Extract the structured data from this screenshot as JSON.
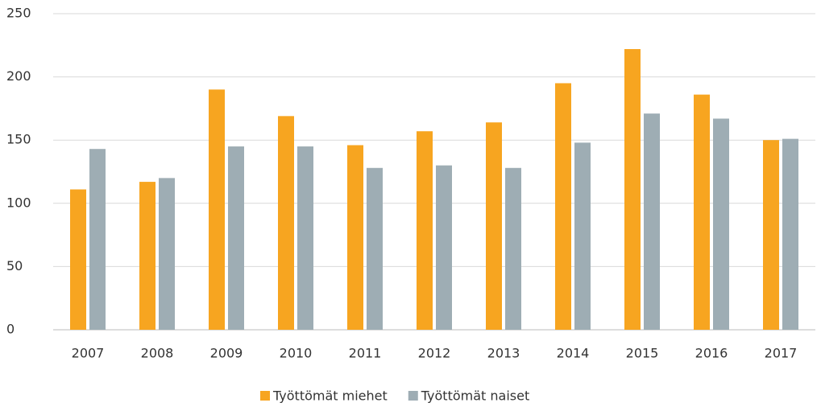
{
  "chart_data": {
    "type": "bar",
    "categories": [
      "2007",
      "2008",
      "2009",
      "2010",
      "2011",
      "2012",
      "2013",
      "2014",
      "2015",
      "2016",
      "2017"
    ],
    "series": [
      {
        "name": "Työttömät miehet",
        "color": "#f7a520",
        "values": [
          111,
          117,
          190,
          169,
          146,
          157,
          164,
          195,
          222,
          186,
          150
        ]
      },
      {
        "name": "Työttömät naiset",
        "color": "#9eadb4",
        "values": [
          143,
          120,
          145,
          145,
          128,
          130,
          128,
          148,
          171,
          167,
          151
        ]
      }
    ],
    "ylim": [
      0,
      250
    ],
    "yticks": [
      0,
      50,
      100,
      150,
      200,
      250
    ],
    "grid": true,
    "legend": "bottom"
  }
}
